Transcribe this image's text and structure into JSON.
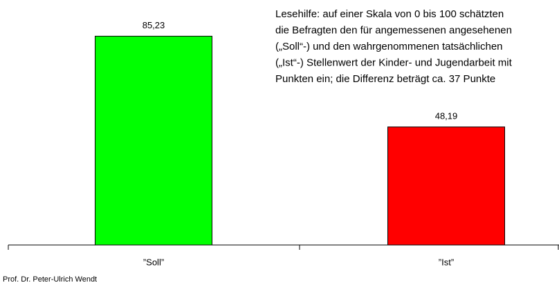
{
  "chart_data": {
    "type": "bar",
    "categories": [
      "”Soll”",
      "”Ist”"
    ],
    "values": [
      85.23,
      48.19
    ],
    "value_labels": [
      "85,23",
      "48,19"
    ],
    "colors": [
      "#00ff00",
      "#ff0000"
    ],
    "ylim": [
      0,
      100
    ],
    "annotation": [
      "Lesehilfe: auf einer Skala von 0 bis 100 schätzten",
      "die Befragten den für angemessenen angesehenen",
      "(„Soll“-) und den wahrgenommenen tatsächlichen",
      "(„Ist“-) Stellenwert der Kinder- und Jugendarbeit mit",
      "Punkten ein; die Differenz beträgt ca. 37 Punkte"
    ],
    "footer": "Prof. Dr. Peter-Ulrich Wendt"
  }
}
